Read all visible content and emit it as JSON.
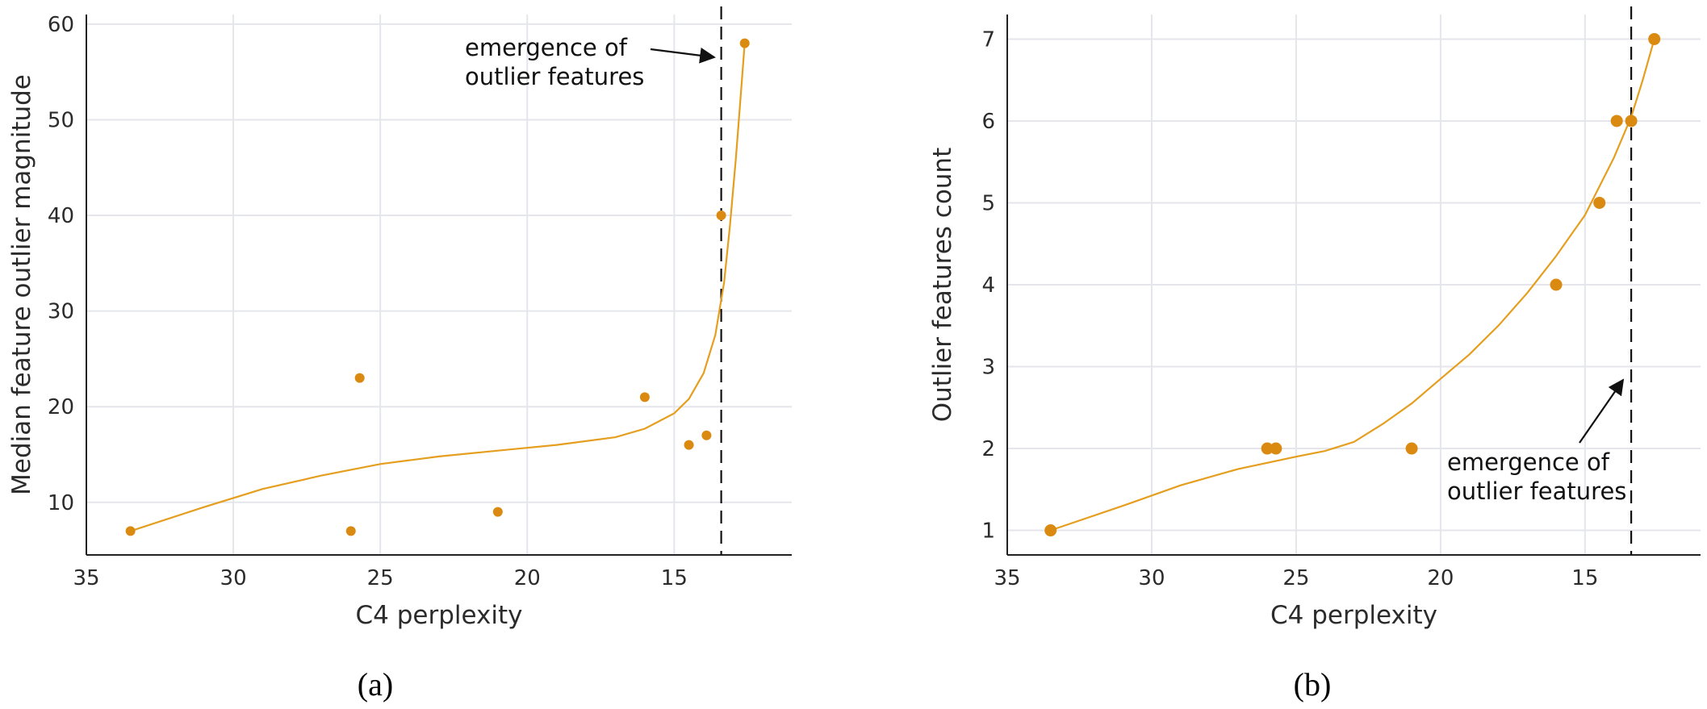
{
  "chart_data": [
    {
      "type": "scatter",
      "xlabel": "C4 perplexity",
      "ylabel": "Median feature outlier magnitude",
      "xlim": [
        35,
        11
      ],
      "ylim": [
        4.5,
        61
      ],
      "x_reversed": true,
      "xticks": [
        35,
        30,
        25,
        20,
        15
      ],
      "yticks": [
        10,
        20,
        30,
        40,
        50,
        60
      ],
      "grid": true,
      "points": [
        {
          "x": 33.5,
          "y": 7
        },
        {
          "x": 26.0,
          "y": 7
        },
        {
          "x": 25.7,
          "y": 23
        },
        {
          "x": 21.0,
          "y": 9
        },
        {
          "x": 16.0,
          "y": 21
        },
        {
          "x": 14.5,
          "y": 16
        },
        {
          "x": 13.9,
          "y": 17
        },
        {
          "x": 13.4,
          "y": 40
        },
        {
          "x": 12.6,
          "y": 58
        }
      ],
      "fit_curve": [
        [
          33.5,
          7.0
        ],
        [
          31.0,
          9.5
        ],
        [
          29.0,
          11.4
        ],
        [
          27.0,
          12.8
        ],
        [
          25.0,
          14.0
        ],
        [
          23.0,
          14.8
        ],
        [
          21.0,
          15.4
        ],
        [
          19.0,
          16.0
        ],
        [
          17.0,
          16.8
        ],
        [
          16.0,
          17.7
        ],
        [
          15.0,
          19.3
        ],
        [
          14.5,
          20.8
        ],
        [
          14.0,
          23.5
        ],
        [
          13.6,
          27.5
        ],
        [
          13.3,
          33.0
        ],
        [
          13.1,
          39.0
        ],
        [
          12.9,
          46.0
        ],
        [
          12.75,
          52.0
        ],
        [
          12.6,
          58.0
        ]
      ],
      "threshold_x": 13.4,
      "annotation": {
        "line1": "emergence of",
        "line2": "outlier features",
        "arrow": "right"
      },
      "caption": "(a)",
      "colors": {
        "marker": "#DB8A11",
        "line": "#E59E1E",
        "grid": "#E4E6EB",
        "axis": "#222222",
        "threshold": "#111111"
      }
    },
    {
      "type": "scatter",
      "xlabel": "C4 perplexity",
      "ylabel": "Outlier features count",
      "xlim": [
        35,
        11
      ],
      "ylim": [
        0.7,
        7.3
      ],
      "x_reversed": true,
      "xticks": [
        35,
        30,
        25,
        20,
        15
      ],
      "yticks": [
        1,
        2,
        3,
        4,
        5,
        6,
        7
      ],
      "grid": true,
      "points": [
        {
          "x": 33.5,
          "y": 1
        },
        {
          "x": 26.0,
          "y": 2
        },
        {
          "x": 25.7,
          "y": 2
        },
        {
          "x": 21.0,
          "y": 2
        },
        {
          "x": 16.0,
          "y": 4
        },
        {
          "x": 14.5,
          "y": 5
        },
        {
          "x": 13.9,
          "y": 6
        },
        {
          "x": 13.4,
          "y": 6
        },
        {
          "x": 12.6,
          "y": 7
        }
      ],
      "fit_curve": [
        [
          33.5,
          1.0
        ],
        [
          31.0,
          1.3
        ],
        [
          29.0,
          1.55
        ],
        [
          27.0,
          1.75
        ],
        [
          25.0,
          1.9
        ],
        [
          24.0,
          1.97
        ],
        [
          23.0,
          2.08
        ],
        [
          22.0,
          2.3
        ],
        [
          21.0,
          2.55
        ],
        [
          20.0,
          2.85
        ],
        [
          19.0,
          3.15
        ],
        [
          18.0,
          3.5
        ],
        [
          17.0,
          3.9
        ],
        [
          16.0,
          4.35
        ],
        [
          15.0,
          4.85
        ],
        [
          14.0,
          5.55
        ],
        [
          13.4,
          6.05
        ],
        [
          13.0,
          6.5
        ],
        [
          12.6,
          7.0
        ]
      ],
      "threshold_x": 13.4,
      "annotation": {
        "line1": "emergence of",
        "line2": "outlier features",
        "arrow": "up-right"
      },
      "caption": "(b)",
      "colors": {
        "marker": "#DB8A11",
        "line": "#E59E1E",
        "grid": "#E4E6EB",
        "axis": "#222222",
        "threshold": "#111111"
      }
    }
  ]
}
